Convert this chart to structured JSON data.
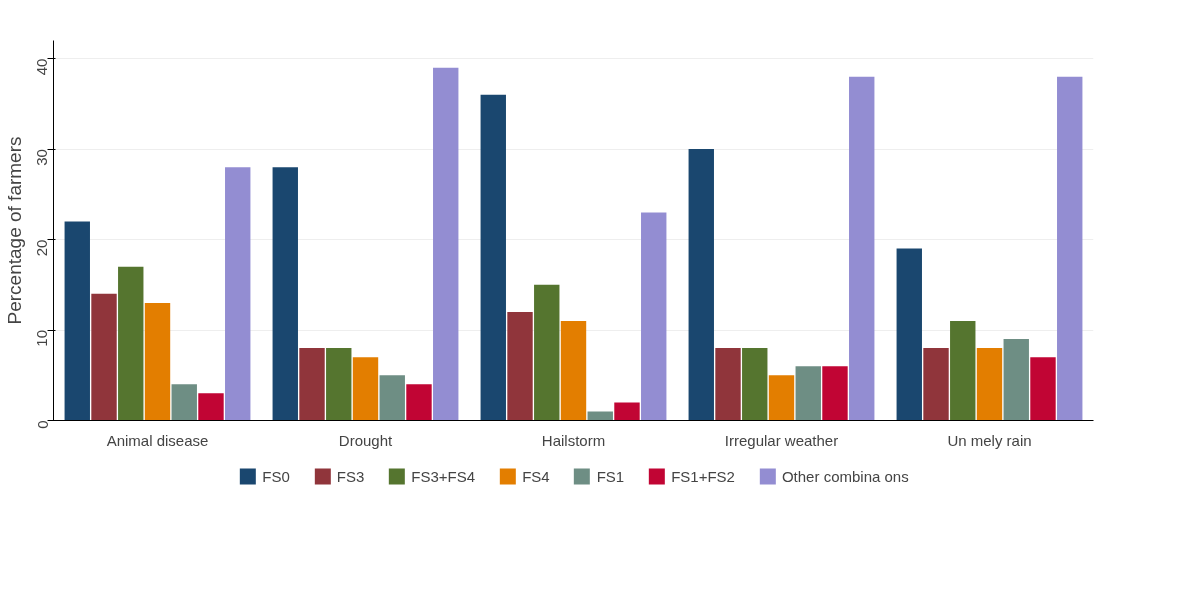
{
  "chart_data": {
    "type": "bar",
    "ylabel": "Percentage of farmers",
    "categories": [
      "Animal disease",
      "Drought",
      "Hailstorm",
      "Irregular weather",
      "Un mely rain"
    ],
    "series": [
      {
        "name": "FS0",
        "color": "#1a476f",
        "values": [
          22,
          28,
          36,
          30,
          19
        ]
      },
      {
        "name": "FS3",
        "color": "#90353b",
        "values": [
          14,
          8,
          12,
          8,
          8
        ]
      },
      {
        "name": "FS3+FS4",
        "color": "#55752f",
        "values": [
          17,
          8,
          15,
          8,
          11
        ]
      },
      {
        "name": "FS4",
        "color": "#e37e00",
        "values": [
          13,
          7,
          11,
          5,
          8
        ]
      },
      {
        "name": "FS1",
        "color": "#6e8e84",
        "values": [
          4,
          5,
          1,
          6,
          9
        ]
      },
      {
        "name": "FS1+FS2",
        "color": "#c10534",
        "values": [
          3,
          4,
          2,
          6,
          7
        ]
      },
      {
        "name": "Other combina ons",
        "color": "#938dd2",
        "values": [
          28,
          39,
          23,
          38,
          38
        ]
      }
    ],
    "ylim": [
      0,
      42
    ],
    "yticks": [
      0,
      10,
      20,
      30,
      40
    ],
    "grid": "y",
    "legend": "bottom"
  }
}
